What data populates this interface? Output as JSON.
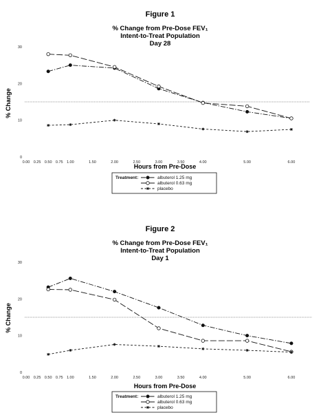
{
  "chart_data": [
    {
      "type": "line",
      "figure_label": "Figure 1",
      "title_lines": [
        "% Change from Pre-Dose FEV₁",
        "Intent-to-Treat Population",
        "Day 28"
      ],
      "xlabel": "Hours from Pre-Dose",
      "ylabel": "% Change",
      "xlim": [
        0,
        6.25
      ],
      "ylim": [
        0,
        30
      ],
      "x_ticks": [
        "0.00",
        "0.25",
        "0.50",
        "0.75",
        "1.00",
        "1.50",
        "2.00",
        "2.50",
        "3.00",
        "3.50",
        "4.00",
        "5.00",
        "6.00"
      ],
      "y_ticks": [
        "0",
        "10",
        "20",
        "30"
      ],
      "reference_line": 15,
      "legend": {
        "title": "Treatment:",
        "placement": "bottom-center"
      },
      "series": [
        {
          "name": "albuterol 1.25 mg",
          "marker": "filled",
          "x": [
            0.5,
            1.0,
            2.0,
            3.0,
            4.0,
            5.0,
            6.0
          ],
          "y": [
            23.3,
            25.0,
            24.2,
            18.6,
            14.8,
            12.3,
            10.5
          ]
        },
        {
          "name": "albuterol 0.63 mg",
          "marker": "open",
          "x": [
            0.5,
            1.0,
            2.0,
            3.0,
            4.0,
            5.0,
            6.0
          ],
          "y": [
            28.0,
            27.7,
            24.5,
            19.2,
            14.7,
            13.8,
            10.5
          ]
        },
        {
          "name": "placebo",
          "marker": "star",
          "x": [
            0.5,
            1.0,
            2.0,
            3.0,
            4.0,
            5.0,
            6.0
          ],
          "y": [
            8.6,
            8.8,
            10.0,
            9.0,
            7.6,
            6.9,
            7.5
          ]
        }
      ]
    },
    {
      "type": "line",
      "figure_label": "Figure 2",
      "title_lines": [
        "% Change from Pre-Dose FEV₁",
        "Intent-to-Treat Population",
        "Day 1"
      ],
      "xlabel": "Hours from Pre-Dose",
      "ylabel": "% Change",
      "xlim": [
        0,
        6.25
      ],
      "ylim": [
        0,
        30
      ],
      "x_ticks": [
        "0.00",
        "0.25",
        "0.50",
        "0.75",
        "1.00",
        "1.50",
        "2.00",
        "2.50",
        "3.00",
        "3.50",
        "4.00",
        "5.00",
        "6.00"
      ],
      "y_ticks": [
        "0",
        "10",
        "20",
        "30"
      ],
      "reference_line": 15,
      "legend": {
        "title": "Treatment:",
        "placement": "bottom-center"
      },
      "series": [
        {
          "name": "albuterol 1.25 mg",
          "marker": "filled",
          "x": [
            0.5,
            1.0,
            2.0,
            3.0,
            4.0,
            5.0,
            6.0
          ],
          "y": [
            23.2,
            25.6,
            22.0,
            17.6,
            12.8,
            10.0,
            7.9
          ]
        },
        {
          "name": "albuterol 0.63 mg",
          "marker": "open",
          "x": [
            0.5,
            1.0,
            2.0,
            3.0,
            4.0,
            5.0,
            6.0
          ],
          "y": [
            22.6,
            22.5,
            19.8,
            12.0,
            8.6,
            8.6,
            5.6
          ]
        },
        {
          "name": "placebo",
          "marker": "star",
          "x": [
            0.5,
            1.0,
            2.0,
            3.0,
            4.0,
            5.0,
            6.0
          ],
          "y": [
            4.9,
            6.0,
            7.6,
            7.1,
            6.4,
            6.0,
            5.5
          ]
        }
      ]
    }
  ]
}
